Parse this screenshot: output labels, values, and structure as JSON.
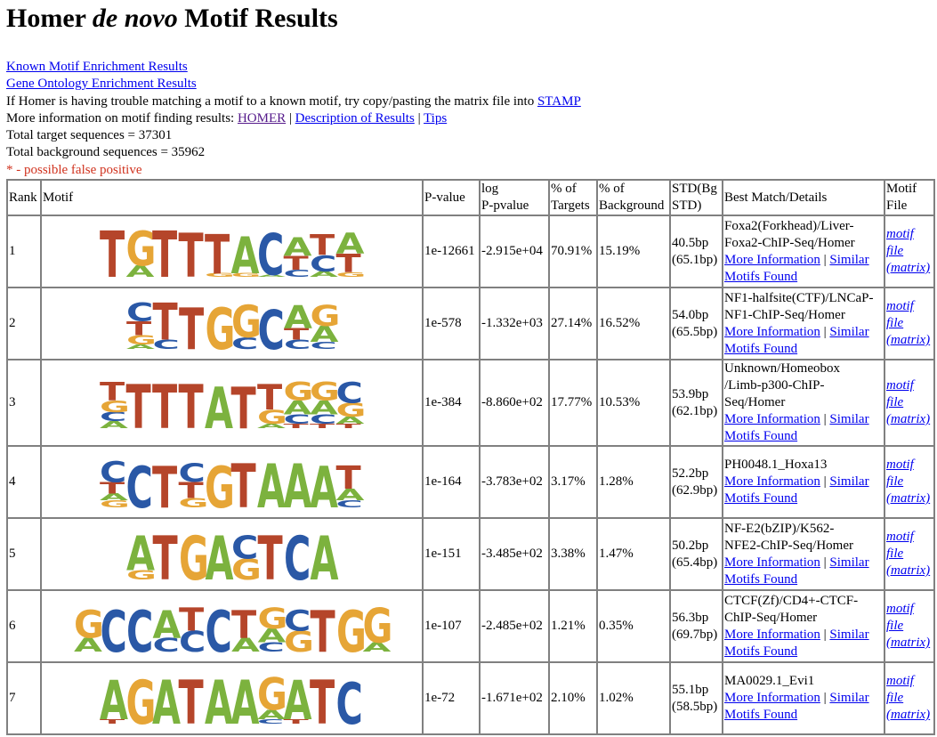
{
  "title": {
    "pre": "Homer ",
    "italic": "de novo",
    "post": " Motif Results"
  },
  "links": {
    "known": "Known Motif Enrichment Results",
    "go": "Gene Ontology Enrichment Results"
  },
  "stamp_text": "If Homer is having trouble matching a motif to a known motif, try copy/pasting the matrix file into ",
  "stamp_link": "STAMP",
  "more_info_text": "More information on motif finding results: ",
  "more_info_links": {
    "homer": "HOMER",
    "desc": "Description of Results",
    "tips": "Tips"
  },
  "separator": " | ",
  "total_target": "Total target sequences = 37301",
  "total_background": "Total background sequences = 35962",
  "false_positive_note": "* - possible false positive",
  "table_header": {
    "rank": "Rank",
    "motif": "Motif",
    "pvalue": "P-value",
    "logp_1": "log",
    "logp_2": "P-pvalue",
    "targets_1": "% of",
    "targets_2": "Targets",
    "bg_1": "% of",
    "bg_2": "Background",
    "std_1": "STD(Bg",
    "std_2": "STD)",
    "best": "Best Match/Details",
    "file_1": "Motif",
    "file_2": "File"
  },
  "row_links": {
    "more": "More Information",
    "similar_1": "Similar",
    "similar_2": "Motifs Found",
    "file_1": "motif",
    "file_2": "file",
    "file_3": "(matrix)"
  },
  "base_colors": {
    "A": "#7cb23e",
    "C": "#2a58a6",
    "G": "#e6a536",
    "T": "#b5452a"
  },
  "rows": [
    {
      "rank": "1",
      "pvalue": "1e-12661",
      "logp": "-2.915e+04",
      "targets": "70.91%",
      "background": "15.19%",
      "std_1": "40.5bp",
      "std_2": "(65.1bp)",
      "best": [
        "Foxa2(Forkhead)/Liver-",
        "Foxa2-ChIP-Seq/Homer"
      ],
      "logo": [
        [
          [
            "T",
            1.0
          ]
        ],
        [
          [
            "G",
            0.75
          ],
          [
            "A",
            0.25
          ]
        ],
        [
          [
            "T",
            1.0
          ]
        ],
        [
          [
            "T",
            0.95
          ]
        ],
        [
          [
            "T",
            0.85
          ],
          [
            "G",
            0.08
          ]
        ],
        [
          [
            "A",
            0.8
          ],
          [
            "G",
            0.08
          ]
        ],
        [
          [
            "C",
            0.9
          ],
          [
            "A",
            0.05
          ]
        ],
        [
          [
            "A",
            0.4
          ],
          [
            "T",
            0.3
          ],
          [
            "C",
            0.15
          ]
        ],
        [
          [
            "T",
            0.45
          ],
          [
            "C",
            0.35
          ],
          [
            "A",
            0.12
          ]
        ],
        [
          [
            "A",
            0.45
          ],
          [
            "T",
            0.4
          ],
          [
            "G",
            0.1
          ]
        ]
      ]
    },
    {
      "rank": "2",
      "pvalue": "1e-578",
      "logp": "-1.332e+03",
      "targets": "27.14%",
      "background": "16.52%",
      "std_1": "54.0bp",
      "std_2": "(65.5bp)",
      "best": [
        "NF1-halfsite(CTF)/LNCaP-",
        "NF1-ChIP-Seq/Homer"
      ],
      "logo": [
        [
          [
            "C",
            0.4
          ],
          [
            "T",
            0.3
          ],
          [
            "G",
            0.2
          ],
          [
            "A",
            0.1
          ]
        ],
        [
          [
            "T",
            0.8
          ],
          [
            "C",
            0.2
          ]
        ],
        [
          [
            "T",
            0.9
          ]
        ],
        [
          [
            "G",
            0.9
          ]
        ],
        [
          [
            "G",
            0.7
          ],
          [
            "C",
            0.25
          ]
        ],
        [
          [
            "C",
            0.85
          ]
        ],
        [
          [
            "A",
            0.5
          ],
          [
            "T",
            0.25
          ],
          [
            "C",
            0.2
          ]
        ],
        [
          [
            "G",
            0.45
          ],
          [
            "A",
            0.35
          ],
          [
            "C",
            0.15
          ]
        ]
      ]
    },
    {
      "rank": "3",
      "pvalue": "1e-384",
      "logp": "-8.860e+02",
      "targets": "17.77%",
      "background": "10.53%",
      "std_1": "53.9bp",
      "std_2": "(62.1bp)",
      "best": [
        "Unknown/Homeobox",
        "/Limb-p300-ChIP-",
        "Seq/Homer"
      ],
      "logo": [
        [
          [
            "T",
            0.4
          ],
          [
            "G",
            0.25
          ],
          [
            "C",
            0.2
          ],
          [
            "A",
            0.15
          ]
        ],
        [
          [
            "T",
            0.95
          ]
        ],
        [
          [
            "T",
            0.95
          ]
        ],
        [
          [
            "T",
            0.95
          ]
        ],
        [
          [
            "A",
            0.9
          ]
        ],
        [
          [
            "T",
            0.9
          ]
        ],
        [
          [
            "T",
            0.55
          ],
          [
            "G",
            0.3
          ],
          [
            "A",
            0.1
          ]
        ],
        [
          [
            "G",
            0.4
          ],
          [
            "A",
            0.3
          ],
          [
            "C",
            0.2
          ],
          [
            "T",
            0.1
          ]
        ],
        [
          [
            "G",
            0.4
          ],
          [
            "A",
            0.3
          ],
          [
            "C",
            0.2
          ],
          [
            "T",
            0.1
          ]
        ],
        [
          [
            "C",
            0.45
          ],
          [
            "G",
            0.3
          ],
          [
            "A",
            0.15
          ],
          [
            "T",
            0.1
          ]
        ]
      ]
    },
    {
      "rank": "4",
      "pvalue": "1e-164",
      "logp": "-3.783e+02",
      "targets": "3.17%",
      "background": "1.28%",
      "std_1": "52.2bp",
      "std_2": "(62.9bp)",
      "best": [
        "PH0048.1_Hoxa13"
      ],
      "logo": [
        [
          [
            "C",
            0.45
          ],
          [
            "T",
            0.25
          ],
          [
            "G",
            0.15
          ],
          [
            "A",
            0.15
          ]
        ],
        [
          [
            "C",
            0.9
          ]
        ],
        [
          [
            "T",
            0.9
          ]
        ],
        [
          [
            "C",
            0.4
          ],
          [
            "T",
            0.35
          ],
          [
            "G",
            0.2
          ]
        ],
        [
          [
            "G",
            0.9
          ]
        ],
        [
          [
            "T",
            0.95
          ]
        ],
        [
          [
            "A",
            0.95
          ]
        ],
        [
          [
            "A",
            0.95
          ]
        ],
        [
          [
            "A",
            0.9
          ]
        ],
        [
          [
            "T",
            0.5
          ],
          [
            "A",
            0.25
          ],
          [
            "C",
            0.15
          ]
        ]
      ]
    },
    {
      "rank": "5",
      "pvalue": "1e-151",
      "logp": "-3.485e+02",
      "targets": "3.38%",
      "background": "1.47%",
      "std_1": "50.2bp",
      "std_2": "(65.4bp)",
      "best": [
        "NF-E2(bZIP)/K562-",
        "NFE2-ChIP-Seq/Homer"
      ],
      "logo": [
        [
          [
            "A",
            0.75
          ],
          [
            "G",
            0.2
          ]
        ],
        [
          [
            "T",
            0.95
          ]
        ],
        [
          [
            "G",
            0.95
          ]
        ],
        [
          [
            "A",
            0.95
          ]
        ],
        [
          [
            "C",
            0.5
          ],
          [
            "G",
            0.45
          ]
        ],
        [
          [
            "T",
            0.95
          ]
        ],
        [
          [
            "C",
            0.95
          ]
        ],
        [
          [
            "A",
            0.95
          ]
        ]
      ]
    },
    {
      "rank": "6",
      "pvalue": "1e-107",
      "logp": "-2.485e+02",
      "targets": "1.21%",
      "background": "0.35%",
      "std_1": "56.3bp",
      "std_2": "(69.7bp)",
      "best": [
        "CTCF(Zf)/CD4+-CTCF-",
        "ChIP-Seq/Homer"
      ],
      "logo": [
        [
          [
            "G",
            0.6
          ],
          [
            "A",
            0.3
          ]
        ],
        [
          [
            "C",
            0.9
          ]
        ],
        [
          [
            "C",
            0.9
          ]
        ],
        [
          [
            "A",
            0.6
          ],
          [
            "C",
            0.3
          ]
        ],
        [
          [
            "T",
            0.5
          ],
          [
            "C",
            0.45
          ]
        ],
        [
          [
            "C",
            0.9
          ]
        ],
        [
          [
            "T",
            0.6
          ],
          [
            "A",
            0.3
          ]
        ],
        [
          [
            "G",
            0.45
          ],
          [
            "A",
            0.3
          ],
          [
            "C",
            0.2
          ]
        ],
        [
          [
            "G",
            0.45
          ],
          [
            "C",
            0.45
          ]
        ],
        [
          [
            "T",
            0.9
          ]
        ],
        [
          [
            "G",
            0.9
          ]
        ],
        [
          [
            "G",
            0.75
          ],
          [
            "A",
            0.2
          ]
        ]
      ]
    },
    {
      "rank": "7",
      "pvalue": "1e-72",
      "logp": "-1.671e+02",
      "targets": "2.10%",
      "background": "1.02%",
      "std_1": "55.1bp",
      "std_2": "(58.5bp)",
      "best": [
        "MA0029.1_Evi1"
      ],
      "logo": [
        [
          [
            "A",
            0.85
          ],
          [
            "T",
            0.1
          ]
        ],
        [
          [
            "G",
            0.95
          ]
        ],
        [
          [
            "A",
            0.95
          ]
        ],
        [
          [
            "T",
            0.95
          ]
        ],
        [
          [
            "A",
            0.95
          ]
        ],
        [
          [
            "A",
            0.95
          ]
        ],
        [
          [
            "G",
            0.7
          ],
          [
            "A",
            0.2
          ],
          [
            "C",
            0.1
          ]
        ],
        [
          [
            "A",
            0.85
          ],
          [
            "T",
            0.1
          ]
        ],
        [
          [
            "T",
            0.95
          ]
        ],
        [
          [
            "C",
            0.9
          ]
        ]
      ]
    }
  ]
}
